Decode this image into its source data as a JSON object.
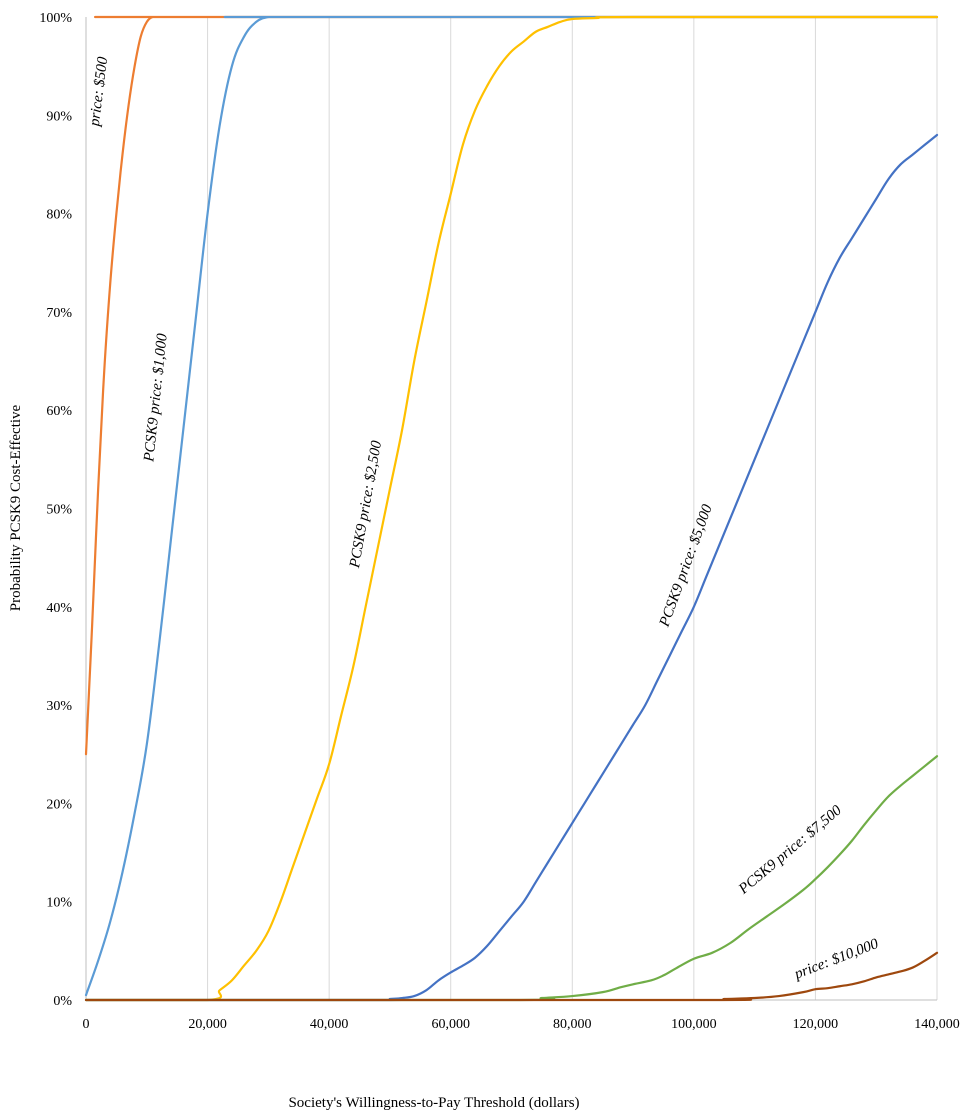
{
  "chart_data": {
    "type": "line",
    "title": "",
    "xlabel": "Society's Willingness-to-Pay Threshold (dollars)",
    "ylabel": "Probability PCSK9  Cost-Effective",
    "xlim": [
      0,
      140000
    ],
    "ylim": [
      0,
      1
    ],
    "x_ticks": [
      0,
      20000,
      40000,
      60000,
      80000,
      100000,
      120000,
      140000
    ],
    "x_tick_labels": [
      "0",
      "20,000",
      "40,000",
      "60,000",
      "80,000",
      "100,000",
      "120,000",
      "140,000"
    ],
    "y_ticks": [
      0,
      0.1,
      0.2,
      0.3,
      0.4,
      0.5,
      0.6,
      0.7,
      0.8,
      0.9,
      1.0
    ],
    "y_tick_labels": [
      "0%",
      "10%",
      "20%",
      "30%",
      "40%",
      "50%",
      "60%",
      "70%",
      "80%",
      "90%",
      "100%"
    ],
    "grid": "vertical",
    "legend": "none",
    "series": [
      {
        "name": "price: $500",
        "color": "#ed7d31",
        "label_text": "price: $500",
        "x": [
          0,
          1000,
          2000,
          3000,
          4000,
          5000,
          6000,
          7000,
          8000,
          9000,
          10000,
          11000,
          12000,
          140000
        ],
        "y": [
          0.25,
          0.38,
          0.52,
          0.64,
          0.73,
          0.8,
          0.86,
          0.91,
          0.95,
          0.98,
          0.995,
          1.0,
          1.0,
          1.0
        ]
      },
      {
        "name": "PCSK9 price: $1,000",
        "color": "#5b9bd5",
        "label_text": "PCSK9 price: $1,000",
        "x": [
          0,
          2000,
          4000,
          6000,
          8000,
          10000,
          12000,
          14000,
          16000,
          18000,
          20000,
          22000,
          24000,
          26000,
          28000,
          30000,
          32000,
          140000
        ],
        "y": [
          0.005,
          0.04,
          0.08,
          0.13,
          0.19,
          0.26,
          0.36,
          0.47,
          0.58,
          0.69,
          0.8,
          0.89,
          0.95,
          0.98,
          0.995,
          1.0,
          1.0,
          1.0
        ]
      },
      {
        "name": "PCSK9 price: $2,500",
        "color": "#ffc000",
        "label_text": "PCSK9 price: $2,500",
        "x": [
          0,
          20000,
          22000,
          24000,
          26000,
          28000,
          30000,
          32000,
          34000,
          36000,
          38000,
          40000,
          42000,
          44000,
          46000,
          48000,
          50000,
          52000,
          54000,
          56000,
          58000,
          60000,
          62000,
          64000,
          66000,
          68000,
          70000,
          72000,
          74000,
          76000,
          78000,
          80000,
          84000,
          90000,
          140000
        ],
        "y": [
          0,
          0,
          0.01,
          0.02,
          0.035,
          0.05,
          0.07,
          0.1,
          0.135,
          0.17,
          0.205,
          0.24,
          0.29,
          0.34,
          0.4,
          0.46,
          0.52,
          0.58,
          0.65,
          0.71,
          0.77,
          0.82,
          0.87,
          0.905,
          0.93,
          0.95,
          0.965,
          0.975,
          0.985,
          0.99,
          0.995,
          0.998,
          0.999,
          1.0,
          1.0
        ]
      },
      {
        "name": "PCSK9 price: $5,000",
        "color": "#4472c4",
        "label_text": "PCSK9 price: $5,000",
        "x": [
          0,
          48000,
          50000,
          52000,
          54000,
          56000,
          58000,
          60000,
          62000,
          64000,
          66000,
          68000,
          70000,
          72000,
          74000,
          76000,
          78000,
          80000,
          82000,
          84000,
          86000,
          88000,
          90000,
          92000,
          94000,
          96000,
          98000,
          100000,
          102000,
          104000,
          106000,
          108000,
          110000,
          112000,
          114000,
          116000,
          118000,
          120000,
          122000,
          124000,
          126000,
          128000,
          130000,
          132000,
          134000,
          136000,
          138000,
          140000
        ],
        "y": [
          0,
          0,
          0.001,
          0.002,
          0.004,
          0.01,
          0.02,
          0.028,
          0.035,
          0.043,
          0.055,
          0.07,
          0.085,
          0.1,
          0.12,
          0.14,
          0.16,
          0.18,
          0.2,
          0.22,
          0.24,
          0.26,
          0.28,
          0.3,
          0.325,
          0.35,
          0.375,
          0.4,
          0.43,
          0.46,
          0.49,
          0.52,
          0.55,
          0.58,
          0.61,
          0.64,
          0.67,
          0.7,
          0.73,
          0.755,
          0.775,
          0.795,
          0.815,
          0.835,
          0.85,
          0.86,
          0.87,
          0.88
        ]
      },
      {
        "name": "PCSK9 price: $7,500",
        "color": "#70ad47",
        "label_text": "PCSK9 price: $7,500",
        "x": [
          0,
          70000,
          75000,
          80000,
          85000,
          88000,
          90000,
          93000,
          95000,
          97000,
          100000,
          103000,
          106000,
          109000,
          112000,
          115000,
          118000,
          120000,
          122000,
          124000,
          126000,
          128000,
          130000,
          132000,
          134000,
          136000,
          138000,
          140000
        ],
        "y": [
          0,
          0,
          0.002,
          0.004,
          0.008,
          0.013,
          0.016,
          0.02,
          0.025,
          0.032,
          0.042,
          0.048,
          0.058,
          0.072,
          0.085,
          0.098,
          0.112,
          0.123,
          0.135,
          0.148,
          0.162,
          0.178,
          0.193,
          0.207,
          0.218,
          0.228,
          0.238,
          0.248
        ]
      },
      {
        "name": "price: $10,000",
        "color": "#9e480e",
        "label_text": "price: $10,000",
        "x": [
          0,
          100000,
          105000,
          110000,
          114000,
          118000,
          120000,
          122000,
          124000,
          126000,
          128000,
          130000,
          132000,
          134000,
          136000,
          138000,
          140000
        ],
        "y": [
          0,
          0,
          0.001,
          0.002,
          0.004,
          0.008,
          0.011,
          0.012,
          0.014,
          0.016,
          0.019,
          0.023,
          0.026,
          0.029,
          0.033,
          0.04,
          0.048
        ]
      }
    ]
  }
}
